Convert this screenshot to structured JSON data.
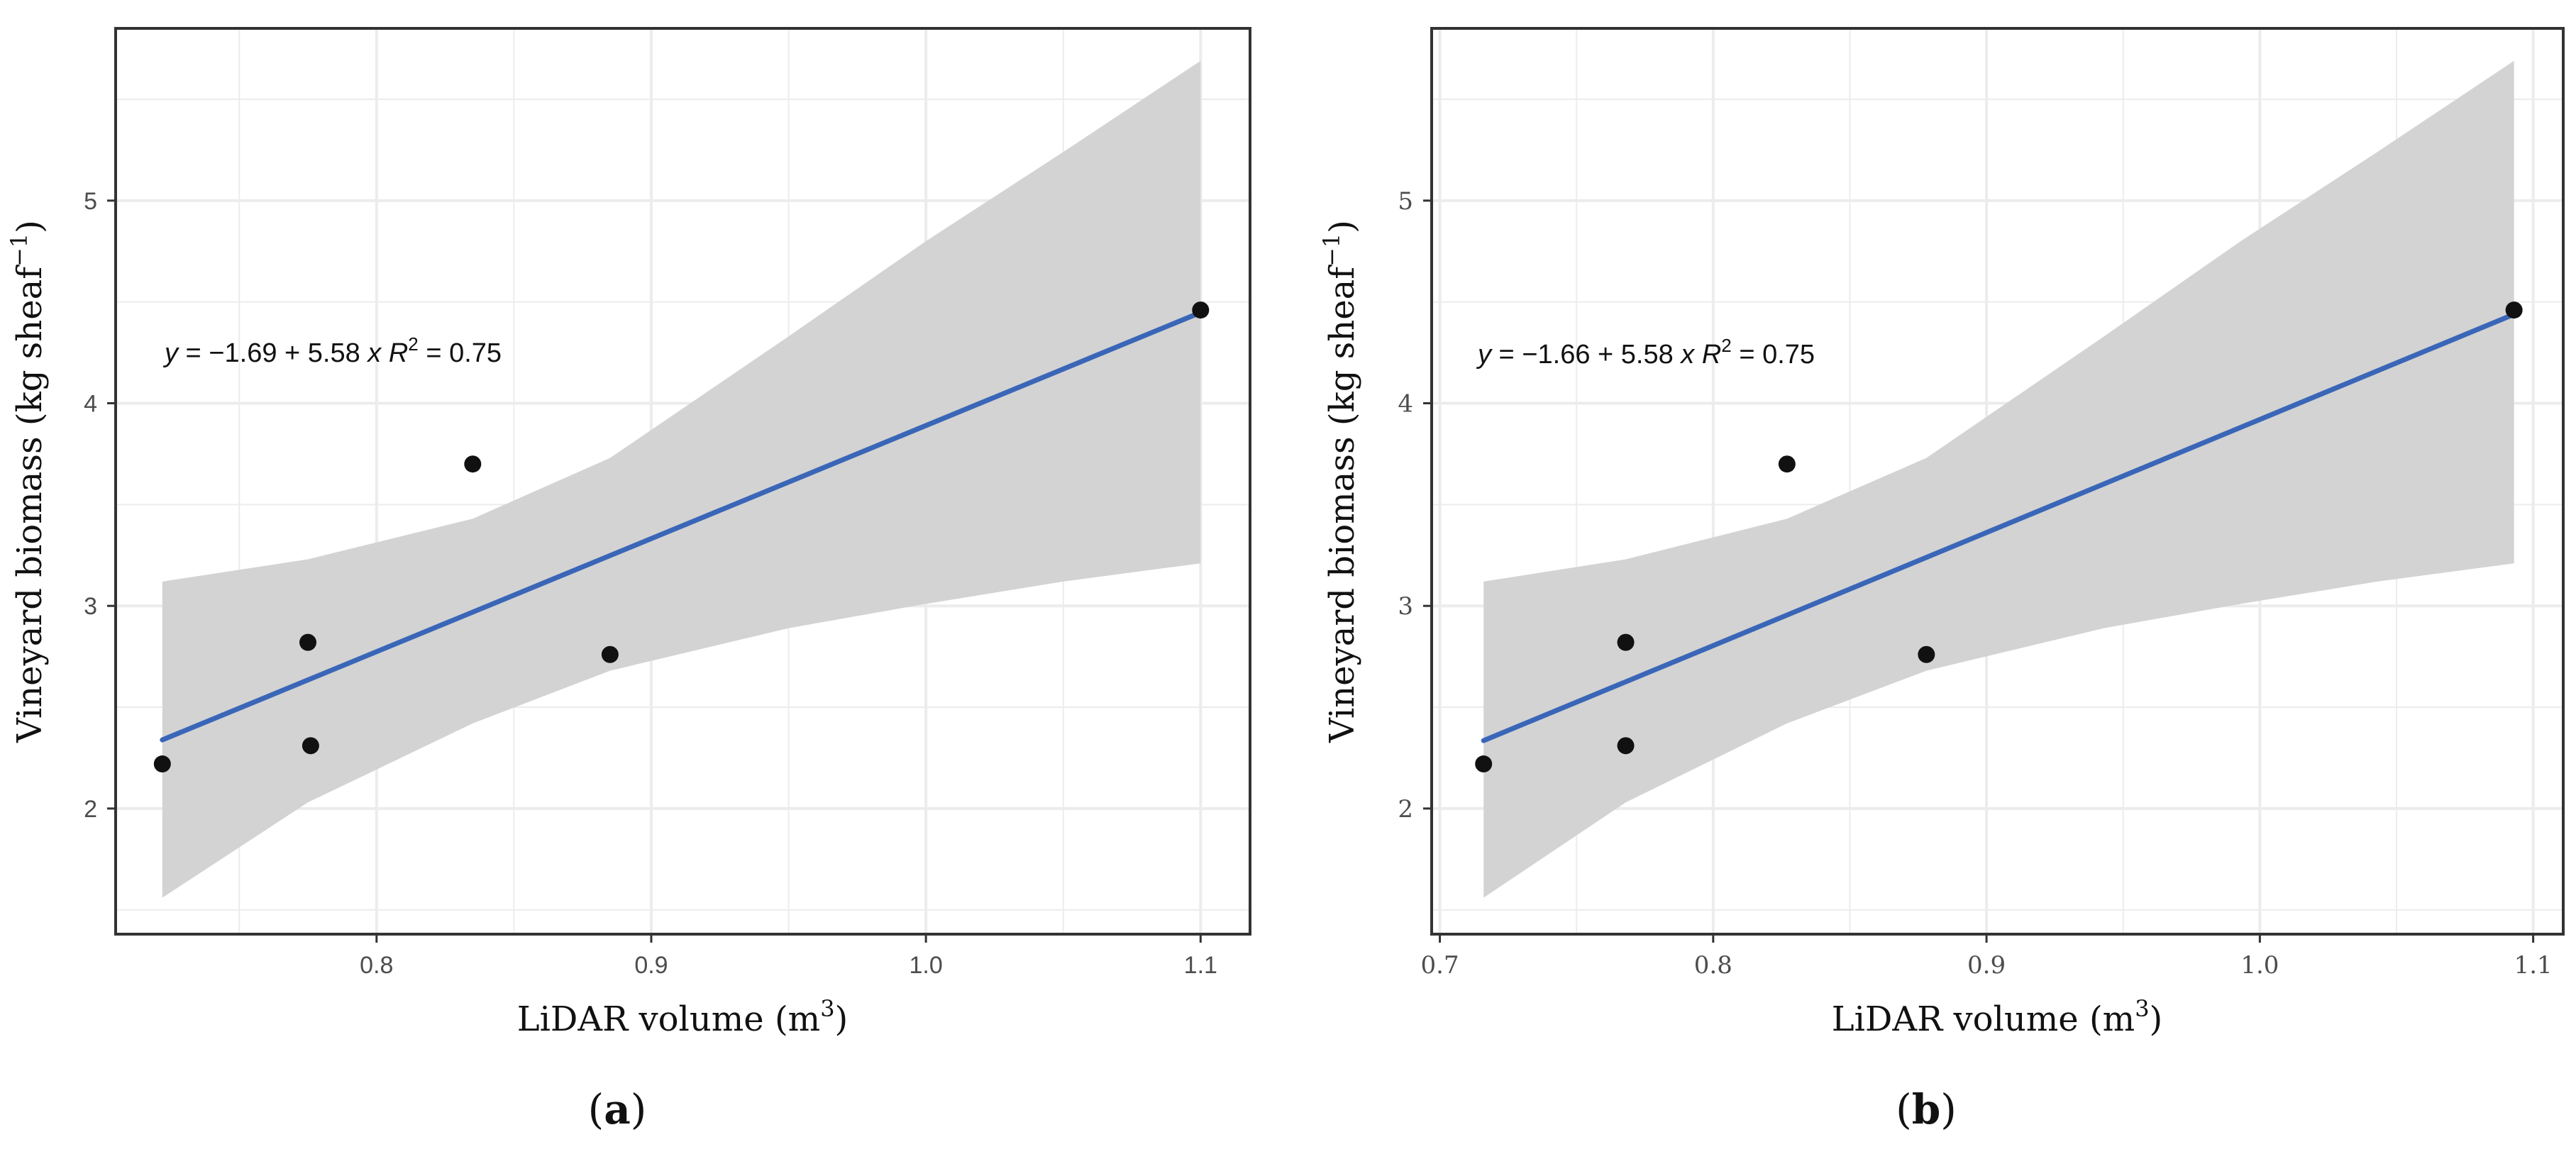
{
  "chart_data": [
    {
      "type": "scatter",
      "panel_label": "(a)",
      "panel_letter": "a",
      "xlabel": "LiDAR volume (m",
      "xlabel_sup": "3",
      "xlabel_end": ")",
      "ylabel": "Vineyard biomass (kg  sheaf",
      "ylabel_sup": "−1",
      "ylabel_end": ")",
      "xlim": [
        0.705,
        1.118
      ],
      "ylim": [
        1.38,
        5.85
      ],
      "x_major_ticks": [
        0.8,
        0.9,
        1.0,
        1.1
      ],
      "x_tick_labels": [
        "0.8",
        "0.9",
        "1.0",
        "1.1"
      ],
      "x_minor_ticks": [
        0.75,
        0.85,
        0.95,
        1.05
      ],
      "y_major_ticks": [
        2,
        3,
        4,
        5
      ],
      "y_tick_labels": [
        "2",
        "3",
        "4",
        "5"
      ],
      "y_minor_ticks": [
        1.5,
        2.5,
        3.5,
        4.5,
        5.5
      ],
      "points": {
        "x": [
          0.722,
          0.775,
          0.776,
          0.835,
          0.885,
          1.1
        ],
        "y": [
          2.22,
          2.82,
          2.31,
          3.7,
          2.76,
          4.46
        ]
      },
      "fit": {
        "intercept": -1.69,
        "slope": 5.58,
        "x_range": [
          0.722,
          1.1
        ]
      },
      "ci_band": {
        "x": [
          0.722,
          0.775,
          0.835,
          0.885,
          0.95,
          1.0,
          1.05,
          1.1
        ],
        "lower": [
          1.56,
          2.03,
          2.42,
          2.68,
          2.89,
          3.01,
          3.12,
          3.21
        ],
        "upper": [
          3.12,
          3.23,
          3.43,
          3.73,
          4.33,
          4.8,
          5.24,
          5.69
        ]
      },
      "equation": {
        "lead": "y",
        "body": " = −1.69 + 5.58 ",
        "x": "x",
        "r": "R",
        "r_sup": "2",
        "r_value": " = 0.75"
      }
    },
    {
      "type": "scatter",
      "panel_label": "(b)",
      "panel_letter": "b",
      "xlabel": "LiDAR volume (m",
      "xlabel_sup": "3",
      "xlabel_end": ")",
      "ylabel": "Vineyard biomass (kg  sheaf",
      "ylabel_sup": "−1",
      "ylabel_end": ")",
      "xlim": [
        0.697,
        1.111
      ],
      "ylim": [
        1.38,
        5.85
      ],
      "x_major_ticks": [
        0.7,
        0.8,
        0.9,
        1.0,
        1.1
      ],
      "x_tick_labels": [
        "0.7",
        "0.8",
        "0.9",
        "1.0",
        "1.1"
      ],
      "x_minor_ticks": [
        0.75,
        0.85,
        0.95,
        1.05
      ],
      "y_major_ticks": [
        2,
        3,
        4,
        5
      ],
      "y_tick_labels": [
        "2",
        "3",
        "4",
        "5"
      ],
      "y_minor_ticks": [
        1.5,
        2.5,
        3.5,
        4.5,
        5.5
      ],
      "points": {
        "x": [
          0.716,
          0.768,
          0.768,
          0.827,
          0.878,
          1.093
        ],
        "y": [
          2.22,
          2.82,
          2.31,
          3.7,
          2.76,
          4.46
        ]
      },
      "fit": {
        "intercept": -1.66,
        "slope": 5.58,
        "x_range": [
          0.716,
          1.093
        ]
      },
      "ci_band": {
        "x": [
          0.716,
          0.768,
          0.827,
          0.878,
          0.943,
          0.993,
          1.043,
          1.093
        ],
        "lower": [
          1.56,
          2.03,
          2.42,
          2.68,
          2.89,
          3.01,
          3.12,
          3.21
        ],
        "upper": [
          3.12,
          3.23,
          3.43,
          3.73,
          4.33,
          4.8,
          5.24,
          5.69
        ]
      },
      "equation": {
        "lead": "y",
        "body": " = −1.66 + 5.58 ",
        "x": "x",
        "r": "R",
        "r_sup": "2",
        "r_value": " = 0.75"
      }
    }
  ],
  "colors": {
    "fit_line": "#3a66b8",
    "ci_band": "#d3d3d3",
    "points": "#111111",
    "grid": "#ececec",
    "frame": "#333333",
    "tick_text": "#4d4d4d"
  }
}
